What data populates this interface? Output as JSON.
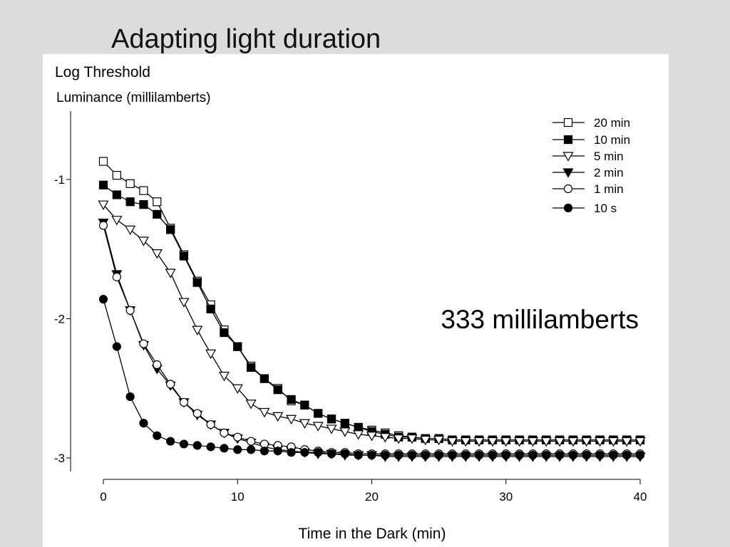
{
  "slide": {
    "title": "Adapting light duration"
  },
  "annotation": "333 millilamberts",
  "chart_data": {
    "type": "line",
    "ylabel_line1": "Log Threshold",
    "ylabel_line2": "Luminance (millilamberts)",
    "xlabel": "Time in the Dark (min)",
    "xlim": [
      0,
      40
    ],
    "ylim": [
      -3.05,
      -0.5
    ],
    "xticks": [
      0,
      10,
      20,
      30,
      40
    ],
    "xtick_labels": [
      "0",
      "10",
      "20",
      "30",
      "40"
    ],
    "yticks": [
      -1,
      -2,
      -3
    ],
    "ytick_labels": [
      "-1",
      "-2",
      "-3"
    ],
    "legend_position": "top-right",
    "x": [
      0,
      1,
      2,
      3,
      4,
      5,
      6,
      7,
      8,
      9,
      10,
      11,
      12,
      13,
      14,
      15,
      16,
      17,
      18,
      19,
      20,
      21,
      22,
      23,
      24,
      25,
      26,
      27,
      28,
      29,
      30,
      31,
      32,
      33,
      34,
      35,
      36,
      37,
      38,
      39,
      40
    ],
    "series": [
      {
        "name": "20 min",
        "marker": "square",
        "filled": false,
        "values": [
          -0.87,
          -0.97,
          -1.03,
          -1.08,
          -1.16,
          -1.35,
          -1.54,
          -1.73,
          -1.9,
          -2.08,
          -2.2,
          -2.34,
          -2.43,
          -2.5,
          -2.59,
          -2.62,
          -2.68,
          -2.72,
          -2.75,
          -2.78,
          -2.8,
          -2.82,
          -2.84,
          -2.85,
          -2.86,
          -2.86,
          -2.87,
          -2.87,
          -2.87,
          -2.87,
          -2.87,
          -2.87,
          -2.87,
          -2.87,
          -2.87,
          -2.87,
          -2.87,
          -2.87,
          -2.87,
          -2.87,
          -2.87
        ]
      },
      {
        "name": "10 min",
        "marker": "square",
        "filled": true,
        "values": [
          -1.04,
          -1.11,
          -1.16,
          -1.18,
          -1.25,
          -1.36,
          -1.55,
          -1.74,
          -1.93,
          -2.1,
          -2.2,
          -2.35,
          -2.43,
          -2.51,
          -2.58,
          -2.62,
          -2.68,
          -2.72,
          -2.75,
          -2.78,
          -2.81,
          -2.83,
          -2.85,
          -2.85,
          -2.86,
          -2.86,
          -2.87,
          -2.87,
          -2.87,
          -2.87,
          -2.87,
          -2.87,
          -2.87,
          -2.87,
          -2.87,
          -2.87,
          -2.87,
          -2.87,
          -2.87,
          -2.87,
          -2.87
        ]
      },
      {
        "name": "5 min",
        "marker": "triangle-down",
        "filled": false,
        "values": [
          -1.18,
          -1.29,
          -1.36,
          -1.44,
          -1.53,
          -1.67,
          -1.88,
          -2.08,
          -2.25,
          -2.41,
          -2.5,
          -2.61,
          -2.67,
          -2.7,
          -2.72,
          -2.75,
          -2.77,
          -2.79,
          -2.81,
          -2.83,
          -2.84,
          -2.85,
          -2.86,
          -2.86,
          -2.87,
          -2.87,
          -2.88,
          -2.88,
          -2.88,
          -2.88,
          -2.88,
          -2.88,
          -2.88,
          -2.88,
          -2.88,
          -2.88,
          -2.88,
          -2.88,
          -2.88,
          -2.88,
          -2.88
        ]
      },
      {
        "name": "2 min",
        "marker": "triangle-down",
        "filled": true,
        "values": [
          -1.31,
          -1.68,
          -1.94,
          -2.19,
          -2.36,
          -2.48,
          -2.6,
          -2.69,
          -2.76,
          -2.82,
          -2.86,
          -2.89,
          -2.92,
          -2.94,
          -2.95,
          -2.96,
          -2.97,
          -2.97,
          -2.98,
          -2.98,
          -2.98,
          -2.99,
          -2.99,
          -2.99,
          -2.99,
          -2.99,
          -2.99,
          -2.99,
          -2.99,
          -2.99,
          -2.99,
          -2.99,
          -2.99,
          -2.99,
          -2.99,
          -2.99,
          -2.99,
          -2.99,
          -2.99,
          -2.99,
          -2.99
        ]
      },
      {
        "name": "1 min",
        "marker": "circle",
        "filled": false,
        "values": [
          -1.33,
          -1.7,
          -1.94,
          -2.18,
          -2.33,
          -2.47,
          -2.6,
          -2.68,
          -2.76,
          -2.82,
          -2.85,
          -2.88,
          -2.9,
          -2.91,
          -2.92,
          -2.94,
          -2.95,
          -2.96,
          -2.96,
          -2.97,
          -2.97,
          -2.97,
          -2.97,
          -2.97,
          -2.97,
          -2.97,
          -2.97,
          -2.97,
          -2.97,
          -2.97,
          -2.97,
          -2.97,
          -2.97,
          -2.97,
          -2.97,
          -2.97,
          -2.97,
          -2.97,
          -2.97,
          -2.97,
          -2.97
        ]
      },
      {
        "name": "10 s",
        "marker": "circle",
        "filled": true,
        "values": [
          -1.86,
          -2.2,
          -2.56,
          -2.75,
          -2.84,
          -2.88,
          -2.9,
          -2.91,
          -2.92,
          -2.93,
          -2.94,
          -2.94,
          -2.95,
          -2.95,
          -2.96,
          -2.96,
          -2.96,
          -2.97,
          -2.97,
          -2.98,
          -2.98,
          -2.98,
          -2.98,
          -2.98,
          -2.98,
          -2.98,
          -2.98,
          -2.98,
          -2.98,
          -2.98,
          -2.98,
          -2.98,
          -2.98,
          -2.98,
          -2.98,
          -2.98,
          -2.98,
          -2.98,
          -2.98,
          -2.98,
          -2.98
        ]
      }
    ]
  }
}
